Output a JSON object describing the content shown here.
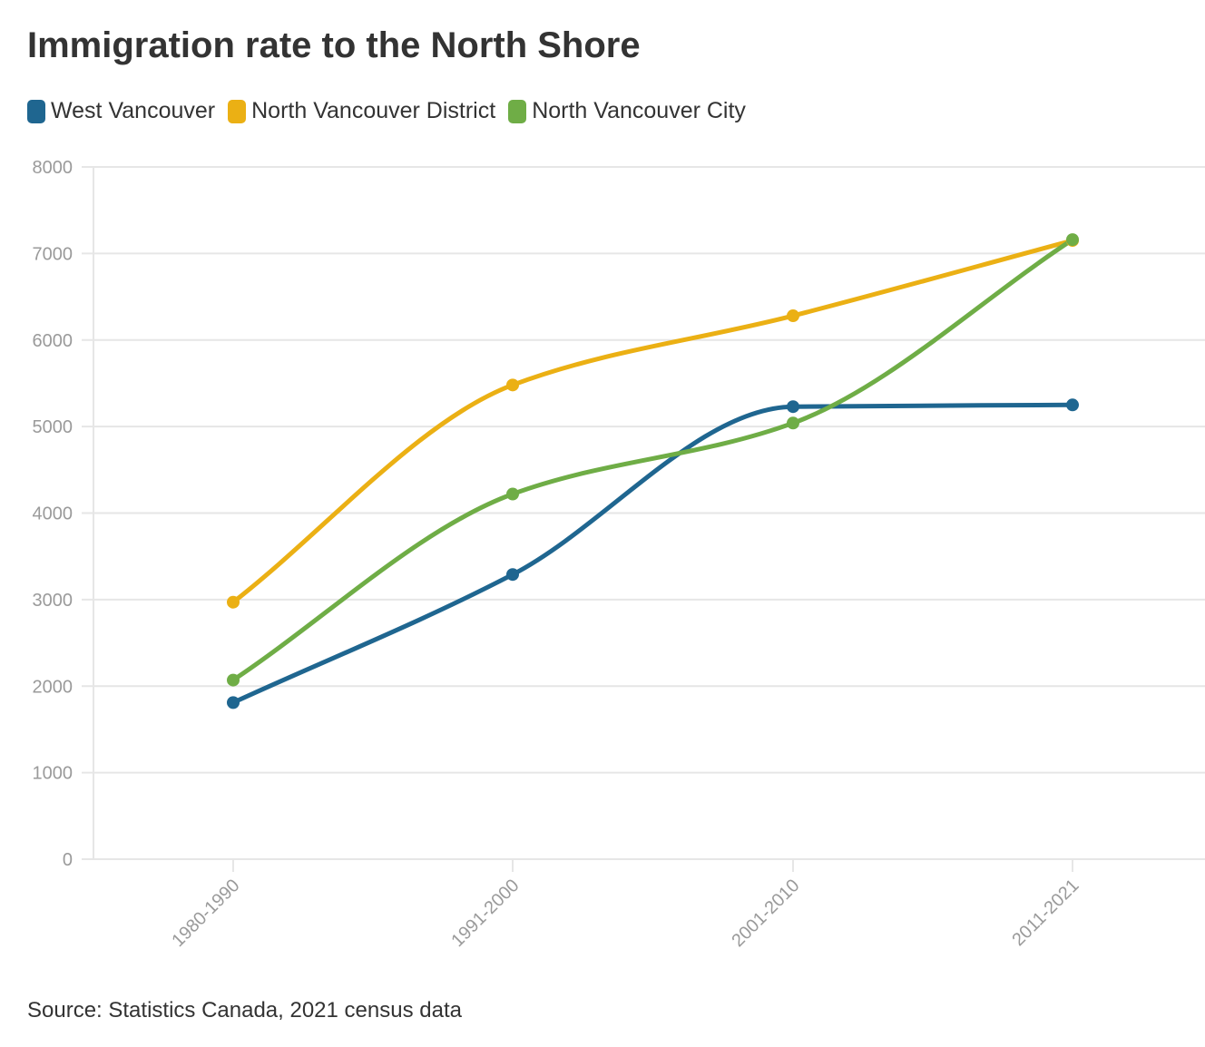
{
  "header": {
    "title": "Immigration rate to the North Shore"
  },
  "footer": {
    "source": "Source: Statistics Canada, 2021 census data"
  },
  "chart_data": {
    "type": "line",
    "title": "Immigration rate to the North Shore",
    "xlabel": "",
    "ylabel": "",
    "categories": [
      "1980-1990",
      "1991-2000",
      "2001-2010",
      "2011-2021"
    ],
    "yticks": [
      0,
      1000,
      2000,
      3000,
      4000,
      5000,
      6000,
      7000,
      8000
    ],
    "ylim": [
      0,
      8000
    ],
    "grid": true,
    "legend_position": "top-left",
    "smooth": true,
    "series": [
      {
        "name": "West Vancouver",
        "color": "#1f6690",
        "values": [
          1810,
          3290,
          5230,
          5250
        ]
      },
      {
        "name": "North Vancouver District",
        "color": "#ebb014",
        "values": [
          2970,
          5480,
          6280,
          7150
        ]
      },
      {
        "name": "North Vancouver City",
        "color": "#6fad46",
        "values": [
          2070,
          4220,
          5040,
          7160
        ]
      }
    ]
  }
}
